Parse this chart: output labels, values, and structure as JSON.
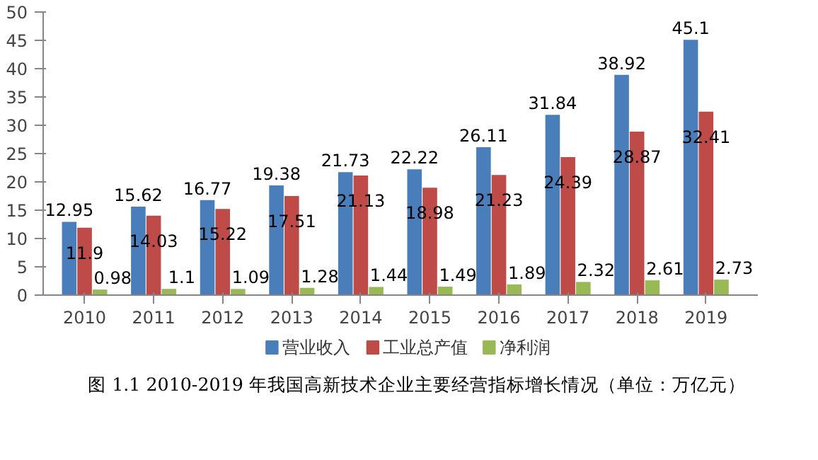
{
  "chart_data": {
    "type": "bar",
    "categories": [
      "2010",
      "2011",
      "2012",
      "2013",
      "2014",
      "2015",
      "2016",
      "2017",
      "2018",
      "2019"
    ],
    "series": [
      {
        "name": "营业收入",
        "color": "#4a7ebb",
        "values": [
          12.95,
          15.62,
          16.77,
          19.38,
          21.73,
          22.22,
          26.11,
          31.84,
          38.92,
          45.1
        ]
      },
      {
        "name": "工业总产值",
        "color": "#be4b48",
        "values": [
          11.9,
          14.03,
          15.22,
          17.51,
          21.13,
          18.98,
          21.23,
          24.39,
          28.87,
          32.41
        ]
      },
      {
        "name": "净利润",
        "color": "#98b954",
        "values": [
          0.98,
          1.1,
          1.09,
          1.28,
          1.44,
          1.49,
          1.89,
          2.32,
          2.61,
          2.73
        ]
      }
    ],
    "ylim": [
      0,
      50
    ],
    "yticks": [
      0,
      5,
      10,
      15,
      20,
      25,
      30,
      35,
      40,
      45,
      50
    ],
    "grid": false,
    "legend": "bottom",
    "data_labels": true,
    "annotations": [
      "图 1.1 2010-2019 年我国高新技术企业主要经营指标增长情况（单位：万亿元）"
    ]
  }
}
